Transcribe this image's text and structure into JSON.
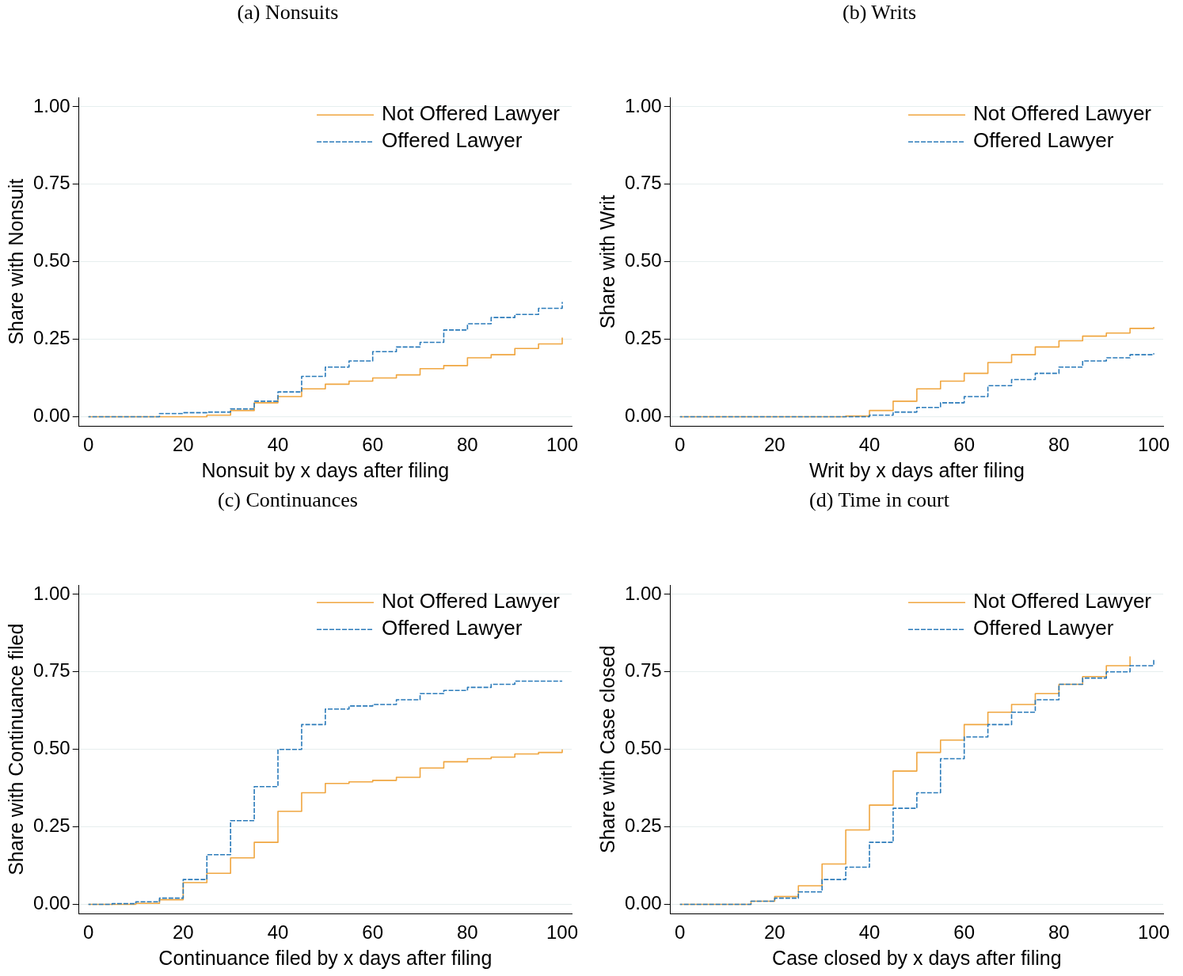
{
  "chart_data": [
    {
      "type": "step",
      "title": "(a) Nonsuits",
      "xlabel": "Nonsuit by x days after filing",
      "ylabel": "Share with Nonsuit",
      "x": [
        0,
        5,
        10,
        15,
        20,
        25,
        30,
        35,
        40,
        45,
        50,
        55,
        60,
        65,
        70,
        75,
        80,
        85,
        90,
        95,
        100
      ],
      "series": [
        {
          "name": "Not Offered Lawyer",
          "color": "#f0a640",
          "line_style": "solid",
          "values": [
            0,
            0,
            0,
            0,
            0,
            0.005,
            0.02,
            0.045,
            0.065,
            0.09,
            0.105,
            0.115,
            0.125,
            0.135,
            0.155,
            0.165,
            0.19,
            0.2,
            0.22,
            0.235,
            0.255
          ]
        },
        {
          "name": "Offered Lawyer",
          "color": "#2b7bba",
          "line_style": "dashed",
          "values": [
            0,
            0,
            0,
            0.01,
            0.013,
            0.015,
            0.025,
            0.05,
            0.08,
            0.13,
            0.16,
            0.18,
            0.21,
            0.225,
            0.24,
            0.28,
            0.3,
            0.32,
            0.33,
            0.35,
            0.37
          ]
        }
      ],
      "xlim": [
        -2,
        102
      ],
      "xticks": [
        0,
        20,
        40,
        60,
        80,
        100
      ],
      "ylim": [
        -0.03,
        1.03
      ],
      "yticks": [
        {
          "value": 0,
          "label": "0.00"
        },
        {
          "value": 0.25,
          "label": "0.25"
        },
        {
          "value": 0.5,
          "label": "0.50"
        },
        {
          "value": 0.75,
          "label": "0.75"
        },
        {
          "value": 1,
          "label": "1.00"
        }
      ],
      "grid": "y",
      "legend": "top right"
    },
    {
      "type": "step",
      "title": "(b) Writs",
      "xlabel": "Writ by x days after filing",
      "ylabel": "Share with Writ",
      "x": [
        0,
        5,
        10,
        15,
        20,
        25,
        30,
        35,
        40,
        45,
        50,
        55,
        60,
        65,
        70,
        75,
        80,
        85,
        90,
        95,
        100
      ],
      "series": [
        {
          "name": "Not Offered Lawyer",
          "color": "#f0a640",
          "line_style": "solid",
          "values": [
            0,
            0,
            0,
            0,
            0,
            0,
            0,
            0.002,
            0.02,
            0.05,
            0.09,
            0.115,
            0.14,
            0.175,
            0.2,
            0.225,
            0.245,
            0.26,
            0.27,
            0.285,
            0.29
          ]
        },
        {
          "name": "Offered Lawyer",
          "color": "#2b7bba",
          "line_style": "dashed",
          "values": [
            0,
            0,
            0,
            0,
            0,
            0,
            0,
            0,
            0.005,
            0.015,
            0.03,
            0.045,
            0.065,
            0.1,
            0.12,
            0.14,
            0.16,
            0.18,
            0.19,
            0.2,
            0.205
          ]
        }
      ],
      "xlim": [
        -2,
        102
      ],
      "xticks": [
        0,
        20,
        40,
        60,
        80,
        100
      ],
      "ylim": [
        -0.03,
        1.03
      ],
      "yticks": [
        {
          "value": 0,
          "label": "0.00"
        },
        {
          "value": 0.25,
          "label": "0.25"
        },
        {
          "value": 0.5,
          "label": "0.50"
        },
        {
          "value": 0.75,
          "label": "0.75"
        },
        {
          "value": 1,
          "label": "1.00"
        }
      ],
      "grid": "y",
      "legend": "top right"
    },
    {
      "type": "step",
      "title": "(c) Continuances",
      "xlabel": "Continuance filed by x days after filing",
      "ylabel": "Share with Continuance filed",
      "x": [
        0,
        5,
        10,
        15,
        20,
        25,
        30,
        35,
        40,
        45,
        50,
        55,
        60,
        65,
        70,
        75,
        80,
        85,
        90,
        95,
        100
      ],
      "series": [
        {
          "name": "Not Offered Lawyer",
          "color": "#f0a640",
          "line_style": "solid",
          "values": [
            0,
            0,
            0.003,
            0.015,
            0.07,
            0.1,
            0.15,
            0.2,
            0.3,
            0.36,
            0.39,
            0.395,
            0.4,
            0.41,
            0.44,
            0.46,
            0.47,
            0.475,
            0.485,
            0.49,
            0.5
          ]
        },
        {
          "name": "Offered Lawyer",
          "color": "#2b7bba",
          "line_style": "dashed",
          "values": [
            0,
            0.002,
            0.008,
            0.02,
            0.08,
            0.16,
            0.27,
            0.38,
            0.5,
            0.58,
            0.63,
            0.64,
            0.645,
            0.66,
            0.68,
            0.69,
            0.7,
            0.71,
            0.72,
            0.72,
            0.72
          ]
        }
      ],
      "xlim": [
        -2,
        102
      ],
      "xticks": [
        0,
        20,
        40,
        60,
        80,
        100
      ],
      "ylim": [
        -0.03,
        1.03
      ],
      "yticks": [
        {
          "value": 0,
          "label": "0.00"
        },
        {
          "value": 0.25,
          "label": "0.25"
        },
        {
          "value": 0.5,
          "label": "0.50"
        },
        {
          "value": 0.75,
          "label": "0.75"
        },
        {
          "value": 1,
          "label": "1.00"
        }
      ],
      "grid": "y",
      "legend": "top right"
    },
    {
      "type": "step",
      "title": "(d) Time in court",
      "xlabel": "Case closed by x days after filing",
      "ylabel": "Share with Case closed",
      "x": [
        0,
        5,
        10,
        15,
        20,
        25,
        30,
        35,
        40,
        45,
        50,
        55,
        60,
        65,
        70,
        75,
        80,
        85,
        90,
        95,
        100
      ],
      "series": [
        {
          "name": "Not Offered Lawyer",
          "color": "#f0a640",
          "line_style": "solid",
          "values": [
            0,
            0,
            0,
            0.01,
            0.025,
            0.06,
            0.13,
            0.24,
            0.32,
            0.43,
            0.49,
            0.53,
            0.58,
            0.62,
            0.645,
            0.68,
            0.71,
            0.735,
            0.77,
            0.8,
            null
          ]
        },
        {
          "name": "Offered Lawyer",
          "color": "#2b7bba",
          "line_style": "dashed",
          "values": [
            0,
            0,
            0,
            0.01,
            0.02,
            0.04,
            0.08,
            0.12,
            0.2,
            0.31,
            0.36,
            0.47,
            0.54,
            0.58,
            0.62,
            0.66,
            0.71,
            0.73,
            0.75,
            0.77,
            0.79
          ]
        }
      ],
      "xlim": [
        -2,
        102
      ],
      "xticks": [
        0,
        20,
        40,
        60,
        80,
        100
      ],
      "ylim": [
        -0.03,
        1.03
      ],
      "yticks": [
        {
          "value": 0,
          "label": "0.00"
        },
        {
          "value": 0.25,
          "label": "0.25"
        },
        {
          "value": 0.5,
          "label": "0.50"
        },
        {
          "value": 0.75,
          "label": "0.75"
        },
        {
          "value": 1,
          "label": "1.00"
        }
      ],
      "grid": "y",
      "legend": "top right"
    }
  ]
}
